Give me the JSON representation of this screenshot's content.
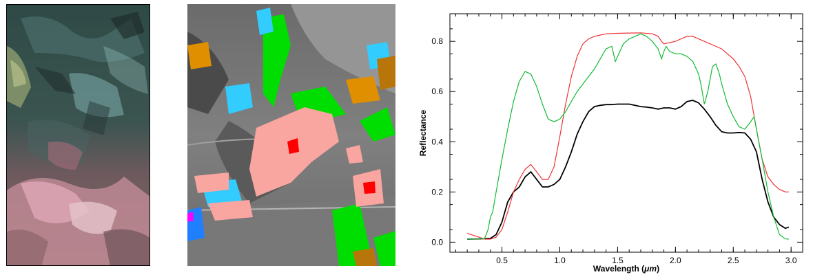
{
  "left_image": {
    "description_icon": "false-color-satellite-image"
  },
  "middle_image": {
    "description_icon": "classified-mineral-map-overlay",
    "class_colors": [
      "#f9a5a0",
      "#ff0000",
      "#33ccff",
      "#1f7fff",
      "#00dd00",
      "#e08f00",
      "#b8760a",
      "#ff00ff"
    ]
  },
  "chart_data": {
    "type": "line",
    "title": "",
    "xlabel_prefix": "Wavelength (",
    "xlabel_unit": "μm",
    "xlabel_suffix": ")",
    "ylabel": "Reflectance",
    "xlim": [
      0.05,
      3.1
    ],
    "ylim": [
      -0.04,
      0.91
    ],
    "xticks": [
      0.5,
      1.0,
      1.5,
      2.0,
      2.5,
      3.0
    ],
    "xtick_labels": [
      "0.5",
      "1.0",
      "1.5",
      "2.0",
      "2.5",
      "3.0"
    ],
    "yticks": [
      0.0,
      0.2,
      0.4,
      0.6,
      0.8
    ],
    "ytick_labels": [
      "0.0",
      "0.2",
      "0.4",
      "0.6",
      "0.8"
    ],
    "series": [
      {
        "color": "#000000",
        "points": [
          [
            0.2,
            0.012
          ],
          [
            0.3,
            0.013
          ],
          [
            0.4,
            0.015
          ],
          [
            0.45,
            0.03
          ],
          [
            0.5,
            0.08
          ],
          [
            0.55,
            0.16
          ],
          [
            0.6,
            0.2
          ],
          [
            0.65,
            0.22
          ],
          [
            0.7,
            0.26
          ],
          [
            0.75,
            0.28
          ],
          [
            0.8,
            0.25
          ],
          [
            0.85,
            0.22
          ],
          [
            0.9,
            0.22
          ],
          [
            0.95,
            0.23
          ],
          [
            1.0,
            0.25
          ],
          [
            1.05,
            0.3
          ],
          [
            1.1,
            0.36
          ],
          [
            1.15,
            0.43
          ],
          [
            1.2,
            0.48
          ],
          [
            1.25,
            0.52
          ],
          [
            1.3,
            0.54
          ],
          [
            1.35,
            0.545
          ],
          [
            1.4,
            0.548
          ],
          [
            1.45,
            0.548
          ],
          [
            1.5,
            0.55
          ],
          [
            1.55,
            0.55
          ],
          [
            1.6,
            0.55
          ],
          [
            1.65,
            0.545
          ],
          [
            1.7,
            0.54
          ],
          [
            1.75,
            0.538
          ],
          [
            1.8,
            0.535
          ],
          [
            1.85,
            0.53
          ],
          [
            1.9,
            0.535
          ],
          [
            1.95,
            0.535
          ],
          [
            2.0,
            0.53
          ],
          [
            2.05,
            0.54
          ],
          [
            2.1,
            0.56
          ],
          [
            2.15,
            0.565
          ],
          [
            2.2,
            0.555
          ],
          [
            2.25,
            0.53
          ],
          [
            2.3,
            0.5
          ],
          [
            2.35,
            0.465
          ],
          [
            2.4,
            0.44
          ],
          [
            2.45,
            0.435
          ],
          [
            2.5,
            0.435
          ],
          [
            2.55,
            0.437
          ],
          [
            2.6,
            0.435
          ],
          [
            2.65,
            0.41
          ],
          [
            2.7,
            0.36
          ],
          [
            2.75,
            0.25
          ],
          [
            2.8,
            0.16
          ],
          [
            2.85,
            0.1
          ],
          [
            2.9,
            0.07
          ],
          [
            2.95,
            0.055
          ],
          [
            2.98,
            0.06
          ]
        ]
      },
      {
        "color": "#ee3333",
        "points": [
          [
            0.2,
            0.035
          ],
          [
            0.3,
            0.02
          ],
          [
            0.35,
            0.012
          ],
          [
            0.4,
            0.012
          ],
          [
            0.45,
            0.02
          ],
          [
            0.5,
            0.05
          ],
          [
            0.55,
            0.12
          ],
          [
            0.6,
            0.2
          ],
          [
            0.65,
            0.25
          ],
          [
            0.7,
            0.29
          ],
          [
            0.75,
            0.31
          ],
          [
            0.8,
            0.28
          ],
          [
            0.85,
            0.25
          ],
          [
            0.9,
            0.25
          ],
          [
            0.95,
            0.3
          ],
          [
            1.0,
            0.42
          ],
          [
            1.05,
            0.55
          ],
          [
            1.1,
            0.66
          ],
          [
            1.15,
            0.74
          ],
          [
            1.2,
            0.79
          ],
          [
            1.25,
            0.81
          ],
          [
            1.3,
            0.82
          ],
          [
            1.35,
            0.825
          ],
          [
            1.4,
            0.83
          ],
          [
            1.5,
            0.832
          ],
          [
            1.6,
            0.833
          ],
          [
            1.7,
            0.834
          ],
          [
            1.8,
            0.83
          ],
          [
            1.85,
            0.82
          ],
          [
            1.88,
            0.8
          ],
          [
            1.9,
            0.79
          ],
          [
            1.95,
            0.795
          ],
          [
            2.0,
            0.8
          ],
          [
            2.05,
            0.81
          ],
          [
            2.1,
            0.82
          ],
          [
            2.15,
            0.82
          ],
          [
            2.2,
            0.81
          ],
          [
            2.25,
            0.8
          ],
          [
            2.3,
            0.79
          ],
          [
            2.35,
            0.78
          ],
          [
            2.4,
            0.77
          ],
          [
            2.45,
            0.75
          ],
          [
            2.5,
            0.73
          ],
          [
            2.55,
            0.7
          ],
          [
            2.6,
            0.66
          ],
          [
            2.65,
            0.58
          ],
          [
            2.7,
            0.45
          ],
          [
            2.75,
            0.33
          ],
          [
            2.8,
            0.26
          ],
          [
            2.85,
            0.23
          ],
          [
            2.9,
            0.21
          ],
          [
            2.95,
            0.2
          ],
          [
            2.98,
            0.2
          ]
        ]
      },
      {
        "color": "#11bb33",
        "points": [
          [
            0.2,
            0.012
          ],
          [
            0.3,
            0.013
          ],
          [
            0.35,
            0.015
          ],
          [
            0.38,
            0.05
          ],
          [
            0.4,
            0.1
          ],
          [
            0.42,
            0.12
          ],
          [
            0.45,
            0.2
          ],
          [
            0.5,
            0.33
          ],
          [
            0.55,
            0.45
          ],
          [
            0.6,
            0.56
          ],
          [
            0.65,
            0.64
          ],
          [
            0.7,
            0.68
          ],
          [
            0.75,
            0.67
          ],
          [
            0.8,
            0.62
          ],
          [
            0.85,
            0.55
          ],
          [
            0.9,
            0.49
          ],
          [
            0.95,
            0.48
          ],
          [
            1.0,
            0.49
          ],
          [
            1.05,
            0.52
          ],
          [
            1.1,
            0.56
          ],
          [
            1.15,
            0.6
          ],
          [
            1.2,
            0.63
          ],
          [
            1.25,
            0.66
          ],
          [
            1.3,
            0.69
          ],
          [
            1.35,
            0.73
          ],
          [
            1.4,
            0.77
          ],
          [
            1.45,
            0.78
          ],
          [
            1.48,
            0.72
          ],
          [
            1.5,
            0.74
          ],
          [
            1.55,
            0.79
          ],
          [
            1.6,
            0.81
          ],
          [
            1.65,
            0.82
          ],
          [
            1.7,
            0.83
          ],
          [
            1.75,
            0.82
          ],
          [
            1.8,
            0.8
          ],
          [
            1.85,
            0.77
          ],
          [
            1.88,
            0.73
          ],
          [
            1.9,
            0.76
          ],
          [
            1.92,
            0.78
          ],
          [
            1.95,
            0.76
          ],
          [
            2.0,
            0.75
          ],
          [
            2.05,
            0.75
          ],
          [
            2.1,
            0.74
          ],
          [
            2.15,
            0.72
          ],
          [
            2.2,
            0.67
          ],
          [
            2.22,
            0.63
          ],
          [
            2.25,
            0.55
          ],
          [
            2.28,
            0.6
          ],
          [
            2.32,
            0.7
          ],
          [
            2.35,
            0.71
          ],
          [
            2.38,
            0.67
          ],
          [
            2.4,
            0.63
          ],
          [
            2.45,
            0.55
          ],
          [
            2.5,
            0.5
          ],
          [
            2.55,
            0.46
          ],
          [
            2.6,
            0.45
          ],
          [
            2.65,
            0.48
          ],
          [
            2.68,
            0.5
          ],
          [
            2.7,
            0.45
          ],
          [
            2.75,
            0.33
          ],
          [
            2.8,
            0.2
          ],
          [
            2.85,
            0.1
          ],
          [
            2.9,
            0.03
          ],
          [
            2.95,
            0.013
          ],
          [
            2.98,
            0.012
          ]
        ]
      }
    ]
  }
}
